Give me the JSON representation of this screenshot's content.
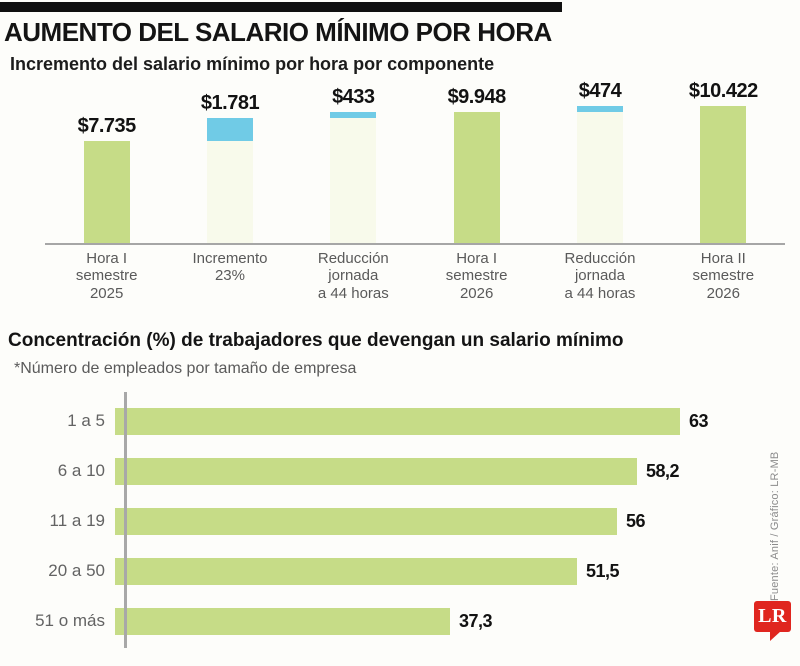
{
  "header": {
    "title": "AUMENTO DEL SALARIO MÍNIMO POR HORA"
  },
  "colors": {
    "green": "#c6dc87",
    "blue": "#70cbe6",
    "pale_base": "#f8faeb",
    "axis_gray": "#a6a6a6",
    "logo_red": "#e0261f"
  },
  "chart_data": [
    {
      "type": "bar",
      "subtype": "waterfall",
      "title": "Incremento del salario mínimo por hora por componente",
      "categories": [
        "Hora I semestre 2025",
        "Incremento 23%",
        "Reducción jornada a 44 horas",
        "Hora I semestre 2026",
        "Reducción jornada a 44 horas",
        "Hora II semestre 2026"
      ],
      "category_display": [
        "Hora I\nsemestre\n2025",
        "Incremento\n23%",
        "Reducción\njornada\na 44 horas",
        "Hora I\nsemestre\n2026",
        "Reducción\njornada\na 44 horas",
        "Hora II\nsemestre\n2026"
      ],
      "value_labels": [
        "$7.735",
        "$1.781",
        "$433",
        "$9.948",
        "$474",
        "$10.422"
      ],
      "values": [
        7735,
        1781,
        433,
        9948,
        474,
        10422
      ],
      "bases": [
        0,
        7735,
        9516,
        0,
        9948,
        0
      ],
      "segment_colors": [
        "green",
        "blue",
        "blue",
        "green",
        "blue",
        "green"
      ],
      "ymax": 10422,
      "grid": false,
      "legend": false
    },
    {
      "type": "bar",
      "orientation": "horizontal",
      "title": "Concentración (%) de trabajadores que devengan un salario mínimo",
      "note": "*Número de empleados por tamaño de empresa",
      "categories": [
        "1 a 5",
        "6 a 10",
        "11 a 19",
        "20 a 50",
        "51 o más"
      ],
      "values": [
        63,
        58.2,
        56,
        51.5,
        37.3
      ],
      "value_labels": [
        "63",
        "58,2",
        "56",
        "51,5",
        "37,3"
      ],
      "xmax": 63,
      "grid": false,
      "legend": false
    }
  ],
  "footer": {
    "source": "Fuente: Anif / Gráfico: LR-MB",
    "logo_text": "LR"
  }
}
